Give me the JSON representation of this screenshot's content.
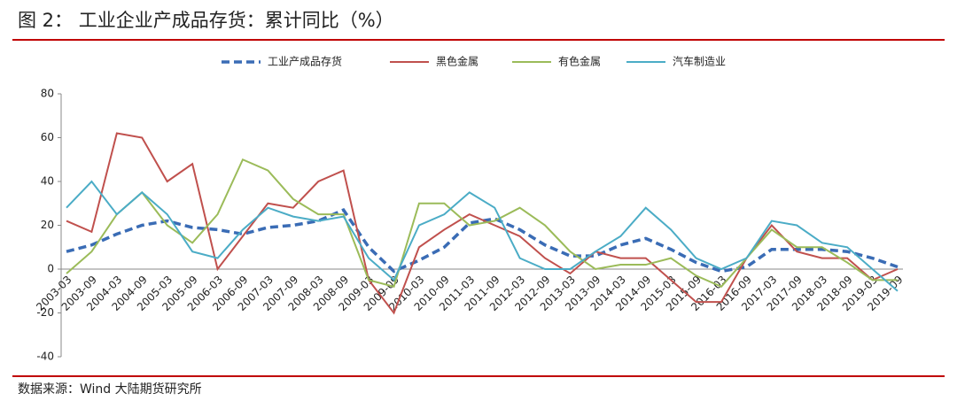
{
  "chart_data": {
    "type": "line",
    "title": "图 2：  工业企业产成品存货：累计同比（%）",
    "source": "数据来源：Wind   大陆期货研究所",
    "categories": [
      "2003-03",
      "2003-09",
      "2004-03",
      "2004-09",
      "2005-03",
      "2005-09",
      "2006-03",
      "2006-09",
      "2007-03",
      "2007-09",
      "2008-03",
      "2008-09",
      "2009-03",
      "2009-09",
      "2010-03",
      "2010-09",
      "2011-03",
      "2011-09",
      "2012-03",
      "2012-09",
      "2013-03",
      "2013-09",
      "2014-03",
      "2014-09",
      "2015-03",
      "2015-09",
      "2016-03",
      "2016-09",
      "2017-03",
      "2017-09",
      "2018-03",
      "2018-09",
      "2019-03",
      "2019-09"
    ],
    "series": [
      {
        "name": "工业产成品存货",
        "color": "#3a6cb5",
        "dashed": true,
        "values": [
          8,
          11,
          16,
          20,
          22,
          19,
          18,
          16,
          19,
          20,
          22,
          27,
          10,
          -1,
          4,
          10,
          21,
          23,
          18,
          11,
          6,
          6,
          11,
          14,
          9,
          3,
          -1,
          1,
          9,
          9,
          9,
          8,
          5,
          1
        ]
      },
      {
        "name": "黑色金属",
        "color": "#c0504d",
        "values": [
          22,
          17,
          62,
          60,
          40,
          48,
          0,
          15,
          30,
          28,
          40,
          45,
          -5,
          -20,
          10,
          18,
          25,
          20,
          15,
          5,
          -2,
          8,
          5,
          5,
          -5,
          -15,
          -15,
          5,
          20,
          8,
          5,
          5,
          -5,
          0
        ]
      },
      {
        "name": "有色金属",
        "color": "#9bbb59",
        "values": [
          -2,
          8,
          25,
          35,
          20,
          12,
          25,
          50,
          45,
          32,
          25,
          25,
          -5,
          -8,
          30,
          30,
          20,
          22,
          28,
          20,
          8,
          0,
          2,
          2,
          5,
          -3,
          -8,
          5,
          18,
          10,
          10,
          3,
          -5,
          -5
        ]
      },
      {
        "name": "汽车制造业",
        "color": "#4bacc6",
        "values": [
          28,
          40,
          25,
          35,
          25,
          8,
          5,
          18,
          28,
          24,
          22,
          24,
          5,
          -5,
          20,
          25,
          35,
          28,
          5,
          0,
          0,
          8,
          15,
          28,
          18,
          5,
          0,
          5,
          22,
          20,
          12,
          10,
          0,
          -10
        ]
      }
    ],
    "ylim": [
      -40,
      80
    ],
    "yticks": [
      -40,
      -20,
      0,
      20,
      40,
      60,
      80
    ]
  }
}
